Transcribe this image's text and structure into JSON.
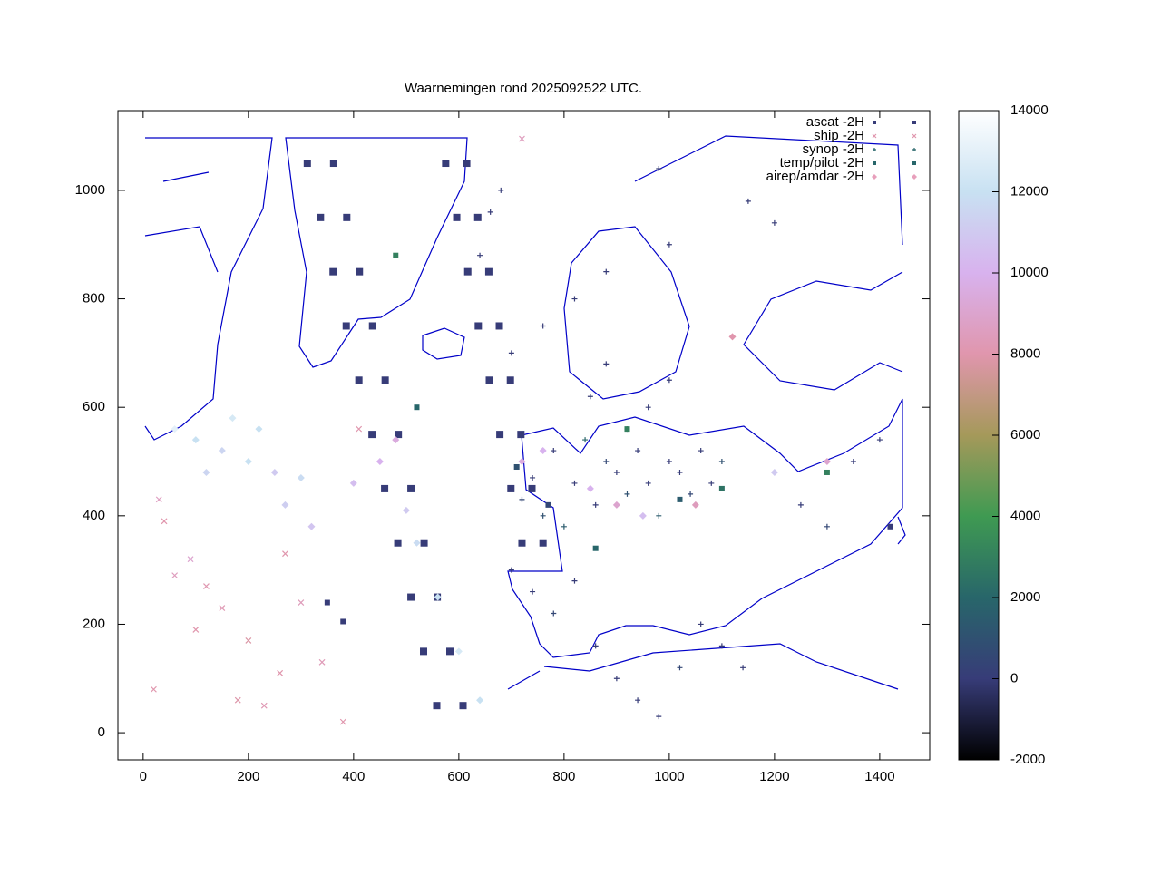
{
  "chart_data": {
    "type": "scatter",
    "title": "Waarnemingen rond 2025092522 UTC.",
    "xlim": [
      -48,
      1495
    ],
    "ylim": [
      -50,
      1147
    ],
    "xticks": [
      0,
      200,
      400,
      600,
      800,
      1000,
      1200,
      1400
    ],
    "yticks": [
      0,
      200,
      400,
      600,
      800,
      1000
    ],
    "cblim": [
      -2000,
      14000
    ],
    "cbticks": [
      -2000,
      0,
      2000,
      4000,
      6000,
      8000,
      10000,
      12000,
      14000
    ],
    "colormap": [
      {
        "value": -2000,
        "color": "#000000"
      },
      {
        "value": 0,
        "color": "#373c78"
      },
      {
        "value": 2000,
        "color": "#28666a"
      },
      {
        "value": 4000,
        "color": "#3f9a52"
      },
      {
        "value": 6000,
        "color": "#a5995a"
      },
      {
        "value": 8000,
        "color": "#e096ad"
      },
      {
        "value": 10000,
        "color": "#d8b2ee"
      },
      {
        "value": 12000,
        "color": "#c8e1f2"
      },
      {
        "value": 14000,
        "color": "#ffffff"
      }
    ],
    "legend": "top-right",
    "series": [
      {
        "name": "ascat -2H",
        "marker": "square",
        "color": "#373c78",
        "x": [
          312,
          362,
          337,
          387,
          361,
          411,
          386,
          436,
          410,
          460,
          435,
          485,
          459,
          509,
          484,
          534,
          509,
          559,
          533,
          583,
          558,
          608,
          575,
          615,
          596,
          636,
          617,
          657,
          637,
          677,
          658,
          698,
          678,
          718,
          699,
          739,
          720,
          760
        ],
        "y": [
          1050,
          1050,
          950,
          950,
          850,
          850,
          750,
          750,
          650,
          650,
          550,
          550,
          450,
          450,
          350,
          350,
          250,
          250,
          150,
          150,
          50,
          50,
          1050,
          1050,
          950,
          950,
          850,
          850,
          750,
          750,
          650,
          650,
          550,
          550,
          450,
          450,
          350,
          350
        ],
        "z": [
          0,
          0,
          0,
          0,
          0,
          0,
          0,
          0,
          0,
          0,
          0,
          0,
          0,
          0,
          0,
          0,
          0,
          0,
          0,
          0,
          0,
          0,
          0,
          0,
          0,
          0,
          0,
          0,
          0,
          0,
          0,
          0,
          0,
          0,
          0,
          0,
          0,
          0
        ]
      },
      {
        "name": "ship -2H",
        "marker": "x",
        "color": "#e096ad",
        "x": [
          20,
          60,
          100,
          150,
          200,
          260,
          300,
          380,
          30,
          120,
          180,
          340,
          40,
          230,
          270,
          720,
          90,
          410
        ],
        "y": [
          80,
          290,
          190,
          230,
          170,
          110,
          240,
          20,
          430,
          270,
          60,
          130,
          390,
          50,
          330,
          1095,
          320,
          560
        ],
        "z": [
          8000,
          8500,
          8000,
          8200,
          7800,
          8000,
          8400,
          8000,
          8600,
          8100,
          7900,
          8300,
          8000,
          8200,
          8000,
          8500,
          9000,
          8000
        ]
      },
      {
        "name": "synop -2H",
        "marker": "plus",
        "color": "#28666a",
        "x": [
          700,
          720,
          740,
          760,
          780,
          800,
          820,
          840,
          860,
          880,
          900,
          920,
          940,
          960,
          980,
          1000,
          1020,
          1040,
          1060,
          1080,
          1100,
          700,
          740,
          780,
          820,
          860,
          900,
          940,
          980,
          1020,
          1060,
          1100,
          1140,
          850,
          880,
          920,
          960,
          1000,
          1250,
          1300,
          1350,
          1400,
          700,
          760,
          820,
          880,
          640,
          660,
          680,
          980,
          1000,
          1150,
          1200
        ],
        "y": [
          450,
          430,
          470,
          400,
          520,
          380,
          460,
          540,
          420,
          500,
          480,
          440,
          520,
          460,
          400,
          500,
          480,
          440,
          520,
          460,
          500,
          300,
          260,
          220,
          280,
          160,
          100,
          60,
          30,
          120,
          200,
          160,
          120,
          620,
          680,
          560,
          600,
          650,
          420,
          380,
          500,
          540,
          700,
          750,
          800,
          850,
          880,
          960,
          1000,
          1040,
          900,
          980,
          940
        ],
        "z": [
          0,
          500,
          0,
          1000,
          0,
          1500,
          0,
          2000,
          0,
          500,
          0,
          1000,
          0,
          0,
          1500,
          0,
          0,
          500,
          0,
          0,
          1000,
          0,
          0,
          500,
          0,
          0,
          0,
          0,
          0,
          500,
          0,
          0,
          0,
          0,
          0,
          1000,
          0,
          0,
          0,
          500,
          0,
          0,
          0,
          0,
          0,
          0,
          0,
          0,
          0,
          0,
          0,
          0,
          0
        ]
      },
      {
        "name": "temp/pilot -2H",
        "marker": "fillsquare",
        "color": "#28666a",
        "x": [
          480,
          520,
          710,
          770,
          860,
          920,
          1020,
          1100,
          1300,
          1420,
          380,
          350
        ],
        "y": [
          880,
          600,
          490,
          420,
          340,
          560,
          430,
          450,
          480,
          380,
          205,
          240
        ],
        "z": [
          3000,
          2000,
          1000,
          500,
          2000,
          3000,
          1500,
          2500,
          3000,
          0,
          0,
          0
        ]
      },
      {
        "name": "airep/amdar -2H",
        "marker": "diamond",
        "color": "#e8a0bc",
        "x": [
          100,
          150,
          200,
          250,
          300,
          400,
          450,
          480,
          170,
          220,
          60,
          120,
          500,
          520,
          560,
          600,
          640,
          270,
          320,
          850,
          900,
          950,
          1050,
          1200,
          1300,
          1120,
          720,
          760
        ],
        "y": [
          540,
          520,
          500,
          480,
          470,
          460,
          500,
          540,
          580,
          560,
          560,
          480,
          410,
          350,
          250,
          150,
          60,
          420,
          380,
          450,
          420,
          400,
          420,
          480,
          500,
          730,
          500,
          520
        ],
        "z": [
          12000,
          11500,
          12000,
          11000,
          11800,
          10500,
          10000,
          9500,
          12500,
          12000,
          13000,
          11500,
          11000,
          11800,
          12000,
          12500,
          12000,
          11200,
          10800,
          10000,
          9000,
          10500,
          8500,
          11000,
          9000,
          8000,
          9500,
          10000
        ]
      }
    ]
  }
}
